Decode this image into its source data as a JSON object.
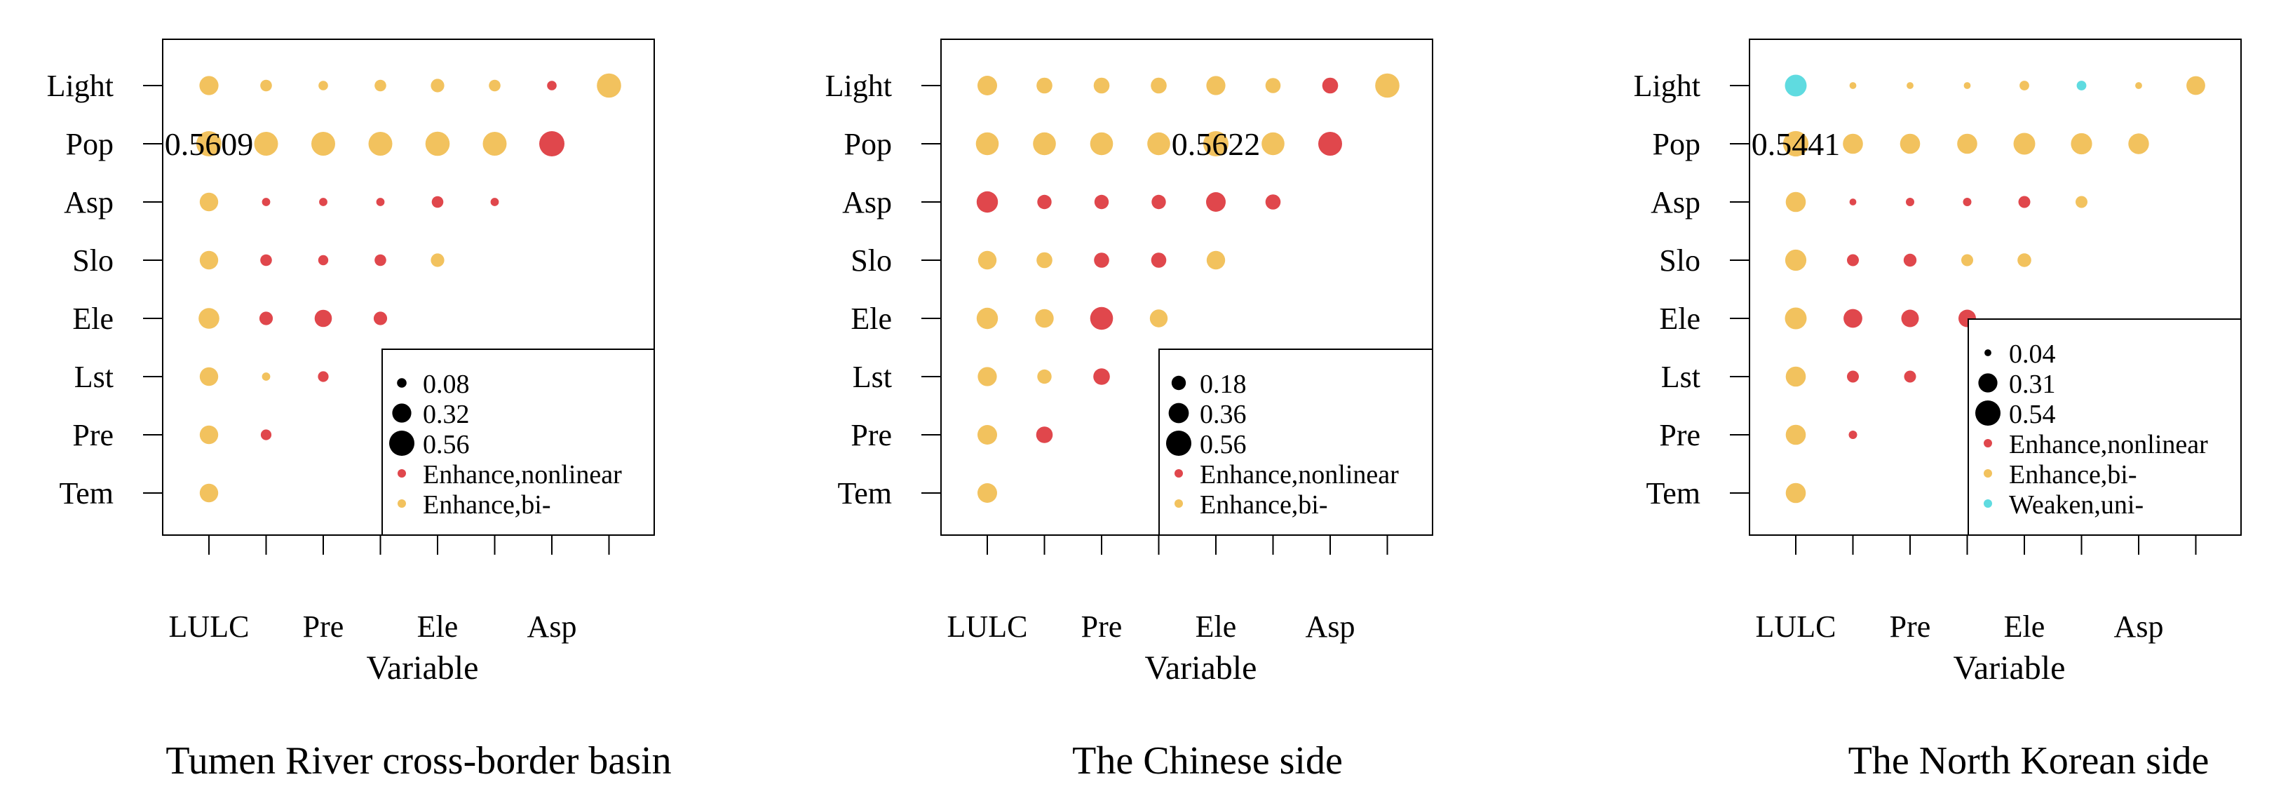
{
  "chart_data": [
    {
      "type": "scatter",
      "title": "Tumen River cross-border basin",
      "xlabel": "Variable",
      "ylabel": "",
      "x_tick_labels": [
        "LULC",
        "Pre",
        "Ele",
        "Asp"
      ],
      "y_categories": [
        "Light",
        "Pop",
        "Asp",
        "Slo",
        "Ele",
        "Lst",
        "Pre",
        "Tem"
      ],
      "annotation": "0.5609",
      "size_legend": [
        "0.08",
        "0.32",
        "0.56"
      ],
      "size_legend_values": [
        0.08,
        0.32,
        0.56
      ],
      "legend_position": "bottom-right",
      "series": [
        {
          "name": "Enhance,nonlinear",
          "color": "#e0474c"
        },
        {
          "name": "Enhance,bi-",
          "color": "#f2c25e"
        }
      ],
      "points": [
        {
          "x": 0,
          "y": "Light",
          "v": 0.32,
          "s": 1
        },
        {
          "x": 1,
          "y": "Light",
          "v": 0.12,
          "s": 1
        },
        {
          "x": 2,
          "y": "Light",
          "v": 0.08,
          "s": 1
        },
        {
          "x": 3,
          "y": "Light",
          "v": 0.12,
          "s": 1
        },
        {
          "x": 4,
          "y": "Light",
          "v": 0.16,
          "s": 1
        },
        {
          "x": 5,
          "y": "Light",
          "v": 0.12,
          "s": 1
        },
        {
          "x": 6,
          "y": "Light",
          "v": 0.08,
          "s": 0
        },
        {
          "x": 7,
          "y": "Light",
          "v": 0.52,
          "s": 1
        },
        {
          "x": 0,
          "y": "Pop",
          "v": 0.5609,
          "s": 1
        },
        {
          "x": 1,
          "y": "Pop",
          "v": 0.5,
          "s": 1
        },
        {
          "x": 2,
          "y": "Pop",
          "v": 0.5,
          "s": 1
        },
        {
          "x": 3,
          "y": "Pop",
          "v": 0.5,
          "s": 1
        },
        {
          "x": 4,
          "y": "Pop",
          "v": 0.52,
          "s": 1
        },
        {
          "x": 5,
          "y": "Pop",
          "v": 0.5,
          "s": 1
        },
        {
          "x": 6,
          "y": "Pop",
          "v": 0.56,
          "s": 0
        },
        {
          "x": 0,
          "y": "Asp",
          "v": 0.3,
          "s": 1
        },
        {
          "x": 1,
          "y": "Asp",
          "v": 0.06,
          "s": 0
        },
        {
          "x": 2,
          "y": "Asp",
          "v": 0.06,
          "s": 0
        },
        {
          "x": 3,
          "y": "Asp",
          "v": 0.06,
          "s": 0
        },
        {
          "x": 4,
          "y": "Asp",
          "v": 0.12,
          "s": 0
        },
        {
          "x": 5,
          "y": "Asp",
          "v": 0.06,
          "s": 0
        },
        {
          "x": 0,
          "y": "Slo",
          "v": 0.3,
          "s": 1
        },
        {
          "x": 1,
          "y": "Slo",
          "v": 0.12,
          "s": 0
        },
        {
          "x": 2,
          "y": "Slo",
          "v": 0.09,
          "s": 0
        },
        {
          "x": 3,
          "y": "Slo",
          "v": 0.12,
          "s": 0
        },
        {
          "x": 4,
          "y": "Slo",
          "v": 0.16,
          "s": 1
        },
        {
          "x": 0,
          "y": "Ele",
          "v": 0.38,
          "s": 1
        },
        {
          "x": 1,
          "y": "Ele",
          "v": 0.16,
          "s": 0
        },
        {
          "x": 2,
          "y": "Ele",
          "v": 0.26,
          "s": 0
        },
        {
          "x": 3,
          "y": "Ele",
          "v": 0.16,
          "s": 0
        },
        {
          "x": 0,
          "y": "Lst",
          "v": 0.3,
          "s": 1
        },
        {
          "x": 1,
          "y": "Lst",
          "v": 0.06,
          "s": 1
        },
        {
          "x": 2,
          "y": "Lst",
          "v": 0.1,
          "s": 0
        },
        {
          "x": 0,
          "y": "Pre",
          "v": 0.3,
          "s": 1
        },
        {
          "x": 1,
          "y": "Pre",
          "v": 0.1,
          "s": 0
        },
        {
          "x": 0,
          "y": "Tem",
          "v": 0.3,
          "s": 1
        }
      ]
    },
    {
      "type": "scatter",
      "title": "The Chinese side",
      "xlabel": "Variable",
      "ylabel": "",
      "x_tick_labels": [
        "LULC",
        "Pre",
        "Ele",
        "Asp"
      ],
      "y_categories": [
        "Light",
        "Pop",
        "Asp",
        "Slo",
        "Ele",
        "Lst",
        "Pre",
        "Tem"
      ],
      "annotation": "0.5622",
      "size_legend": [
        "0.18",
        "0.36",
        "0.56"
      ],
      "size_legend_values": [
        0.18,
        0.36,
        0.56
      ],
      "legend_position": "bottom-right",
      "series": [
        {
          "name": "Enhance,nonlinear",
          "color": "#e0474c"
        },
        {
          "name": "Enhance,bi-",
          "color": "#f2c25e"
        }
      ],
      "points": [
        {
          "x": 0,
          "y": "Light",
          "v": 0.34,
          "s": 1
        },
        {
          "x": 1,
          "y": "Light",
          "v": 0.22,
          "s": 1
        },
        {
          "x": 2,
          "y": "Light",
          "v": 0.22,
          "s": 1
        },
        {
          "x": 3,
          "y": "Light",
          "v": 0.22,
          "s": 1
        },
        {
          "x": 4,
          "y": "Light",
          "v": 0.32,
          "s": 1
        },
        {
          "x": 5,
          "y": "Light",
          "v": 0.2,
          "s": 1
        },
        {
          "x": 6,
          "y": "Light",
          "v": 0.22,
          "s": 0
        },
        {
          "x": 7,
          "y": "Light",
          "v": 0.52,
          "s": 1
        },
        {
          "x": 0,
          "y": "Pop",
          "v": 0.46,
          "s": 1
        },
        {
          "x": 1,
          "y": "Pop",
          "v": 0.46,
          "s": 1
        },
        {
          "x": 2,
          "y": "Pop",
          "v": 0.46,
          "s": 1
        },
        {
          "x": 3,
          "y": "Pop",
          "v": 0.46,
          "s": 1
        },
        {
          "x": 4,
          "y": "Pop",
          "v": 0.5622,
          "s": 1
        },
        {
          "x": 5,
          "y": "Pop",
          "v": 0.46,
          "s": 1
        },
        {
          "x": 6,
          "y": "Pop",
          "v": 0.5,
          "s": 0
        },
        {
          "x": 0,
          "y": "Asp",
          "v": 0.4,
          "s": 0
        },
        {
          "x": 1,
          "y": "Asp",
          "v": 0.18,
          "s": 0
        },
        {
          "x": 2,
          "y": "Asp",
          "v": 0.18,
          "s": 0
        },
        {
          "x": 3,
          "y": "Asp",
          "v": 0.18,
          "s": 0
        },
        {
          "x": 4,
          "y": "Asp",
          "v": 0.34,
          "s": 0
        },
        {
          "x": 5,
          "y": "Asp",
          "v": 0.2,
          "s": 0
        },
        {
          "x": 0,
          "y": "Slo",
          "v": 0.3,
          "s": 1
        },
        {
          "x": 1,
          "y": "Slo",
          "v": 0.22,
          "s": 1
        },
        {
          "x": 2,
          "y": "Slo",
          "v": 0.2,
          "s": 0
        },
        {
          "x": 3,
          "y": "Slo",
          "v": 0.2,
          "s": 0
        },
        {
          "x": 4,
          "y": "Slo",
          "v": 0.3,
          "s": 1
        },
        {
          "x": 0,
          "y": "Ele",
          "v": 0.4,
          "s": 1
        },
        {
          "x": 1,
          "y": "Ele",
          "v": 0.3,
          "s": 1
        },
        {
          "x": 2,
          "y": "Ele",
          "v": 0.46,
          "s": 0
        },
        {
          "x": 3,
          "y": "Ele",
          "v": 0.28,
          "s": 1
        },
        {
          "x": 0,
          "y": "Lst",
          "v": 0.32,
          "s": 1
        },
        {
          "x": 1,
          "y": "Lst",
          "v": 0.18,
          "s": 1
        },
        {
          "x": 2,
          "y": "Lst",
          "v": 0.24,
          "s": 0
        },
        {
          "x": 0,
          "y": "Pre",
          "v": 0.34,
          "s": 1
        },
        {
          "x": 1,
          "y": "Pre",
          "v": 0.24,
          "s": 0
        },
        {
          "x": 0,
          "y": "Tem",
          "v": 0.34,
          "s": 1
        }
      ]
    },
    {
      "type": "scatter",
      "title": "The North Korean side",
      "xlabel": "Variable",
      "ylabel": "",
      "x_tick_labels": [
        "LULC",
        "Pre",
        "Ele",
        "Asp"
      ],
      "y_categories": [
        "Light",
        "Pop",
        "Asp",
        "Slo",
        "Ele",
        "Lst",
        "Pre",
        "Tem"
      ],
      "annotation": "0.5441",
      "size_legend": [
        "0.04",
        "0.31",
        "0.54"
      ],
      "size_legend_values": [
        0.04,
        0.31,
        0.54
      ],
      "legend_position": "bottom-right",
      "series": [
        {
          "name": "Enhance,nonlinear",
          "color": "#e0474c"
        },
        {
          "name": "Enhance,bi-",
          "color": "#f2c25e"
        },
        {
          "name": "Weaken,uni-",
          "color": "#5fdbe0"
        }
      ],
      "points": [
        {
          "x": 0,
          "y": "Light",
          "v": 0.4,
          "s": 2
        },
        {
          "x": 1,
          "y": "Light",
          "v": 0.04,
          "s": 1
        },
        {
          "x": 2,
          "y": "Light",
          "v": 0.04,
          "s": 1
        },
        {
          "x": 3,
          "y": "Light",
          "v": 0.04,
          "s": 1
        },
        {
          "x": 4,
          "y": "Light",
          "v": 0.08,
          "s": 1
        },
        {
          "x": 5,
          "y": "Light",
          "v": 0.08,
          "s": 2
        },
        {
          "x": 6,
          "y": "Light",
          "v": 0.04,
          "s": 1
        },
        {
          "x": 7,
          "y": "Light",
          "v": 0.3,
          "s": 1
        },
        {
          "x": 0,
          "y": "Pop",
          "v": 0.5441,
          "s": 1
        },
        {
          "x": 1,
          "y": "Pop",
          "v": 0.34,
          "s": 1
        },
        {
          "x": 2,
          "y": "Pop",
          "v": 0.34,
          "s": 1
        },
        {
          "x": 3,
          "y": "Pop",
          "v": 0.34,
          "s": 1
        },
        {
          "x": 4,
          "y": "Pop",
          "v": 0.4,
          "s": 1
        },
        {
          "x": 5,
          "y": "Pop",
          "v": 0.38,
          "s": 1
        },
        {
          "x": 6,
          "y": "Pop",
          "v": 0.36,
          "s": 1
        },
        {
          "x": 0,
          "y": "Asp",
          "v": 0.34,
          "s": 1
        },
        {
          "x": 1,
          "y": "Asp",
          "v": 0.04,
          "s": 0
        },
        {
          "x": 2,
          "y": "Asp",
          "v": 0.06,
          "s": 0
        },
        {
          "x": 3,
          "y": "Asp",
          "v": 0.06,
          "s": 0
        },
        {
          "x": 4,
          "y": "Asp",
          "v": 0.12,
          "s": 0
        },
        {
          "x": 5,
          "y": "Asp",
          "v": 0.12,
          "s": 1
        },
        {
          "x": 0,
          "y": "Slo",
          "v": 0.38,
          "s": 1
        },
        {
          "x": 1,
          "y": "Slo",
          "v": 0.12,
          "s": 0
        },
        {
          "x": 2,
          "y": "Slo",
          "v": 0.14,
          "s": 0
        },
        {
          "x": 3,
          "y": "Slo",
          "v": 0.12,
          "s": 1
        },
        {
          "x": 4,
          "y": "Slo",
          "v": 0.16,
          "s": 1
        },
        {
          "x": 0,
          "y": "Ele",
          "v": 0.4,
          "s": 1
        },
        {
          "x": 1,
          "y": "Ele",
          "v": 0.3,
          "s": 0
        },
        {
          "x": 2,
          "y": "Ele",
          "v": 0.26,
          "s": 0
        },
        {
          "x": 3,
          "y": "Ele",
          "v": 0.26,
          "s": 0
        },
        {
          "x": 0,
          "y": "Lst",
          "v": 0.34,
          "s": 1
        },
        {
          "x": 1,
          "y": "Lst",
          "v": 0.12,
          "s": 0
        },
        {
          "x": 2,
          "y": "Lst",
          "v": 0.12,
          "s": 0
        },
        {
          "x": 0,
          "y": "Pre",
          "v": 0.34,
          "s": 1
        },
        {
          "x": 1,
          "y": "Pre",
          "v": 0.06,
          "s": 0
        },
        {
          "x": 0,
          "y": "Tem",
          "v": 0.34,
          "s": 1
        }
      ]
    }
  ]
}
